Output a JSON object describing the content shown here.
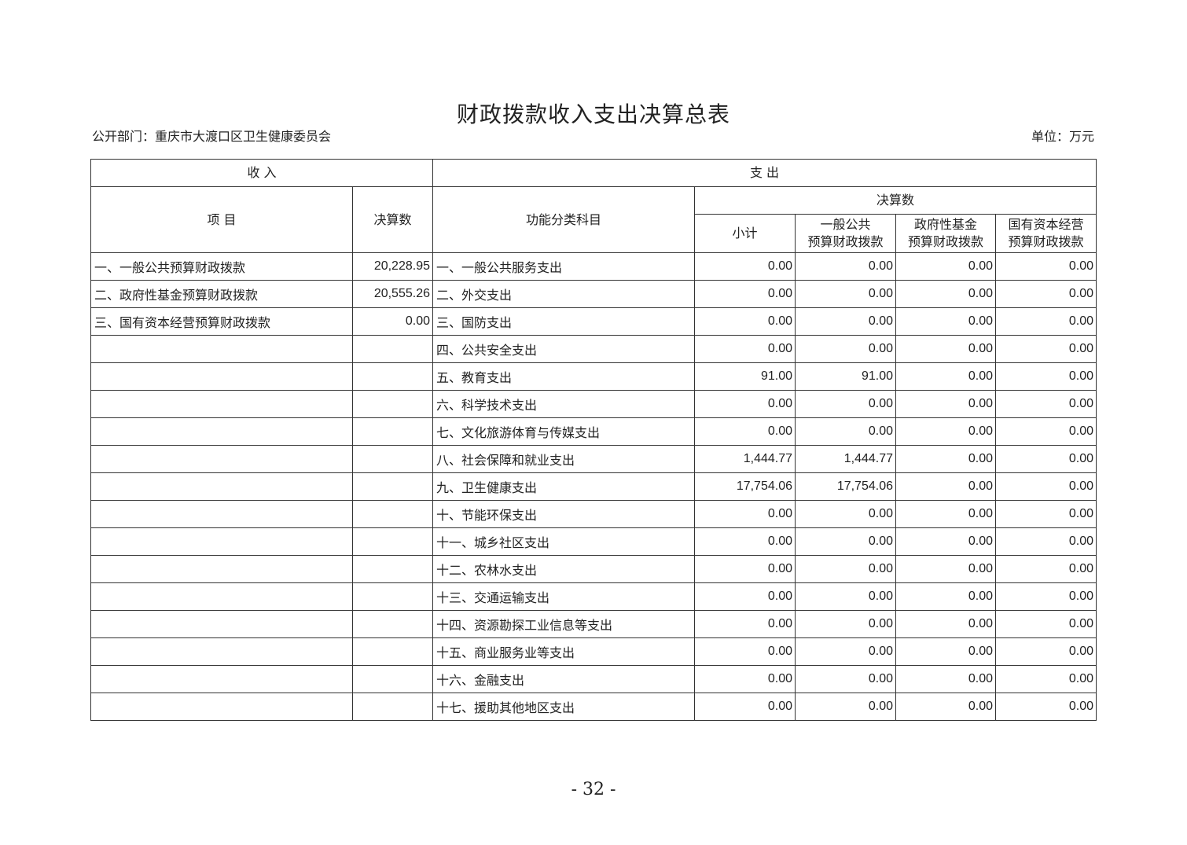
{
  "title": "财政拨款收入支出决算总表",
  "department": "公开部门：重庆市大渡口区卫生健康委员会",
  "unit": "单位：万元",
  "header": {
    "income": "收  入",
    "expense": "支  出",
    "item": "项  目",
    "income_amount": "决算数",
    "function_category": "功能分类科目",
    "final_amount": "决算数",
    "subtotal": "小计",
    "general_public_1": "一般公共",
    "general_public_2": "预算财政拨款",
    "gov_fund_1": "政府性基金",
    "gov_fund_2": "预算财政拨款",
    "state_capital_1": "国有资本经营",
    "state_capital_2": "预算财政拨款"
  },
  "rows": [
    {
      "income_item": "一、一般公共预算财政拨款",
      "income_amount": "20,228.95",
      "category": "一、一般公共服务支出",
      "subtotal": "0.00",
      "general": "0.00",
      "fund": "0.00",
      "capital": "0.00"
    },
    {
      "income_item": "二、政府性基金预算财政拨款",
      "income_amount": "20,555.26",
      "category": "二、外交支出",
      "subtotal": "0.00",
      "general": "0.00",
      "fund": "0.00",
      "capital": "0.00"
    },
    {
      "income_item": "三、国有资本经营预算财政拨款",
      "income_amount": "0.00",
      "category": "三、国防支出",
      "subtotal": "0.00",
      "general": "0.00",
      "fund": "0.00",
      "capital": "0.00"
    },
    {
      "income_item": "",
      "income_amount": "",
      "category": "四、公共安全支出",
      "subtotal": "0.00",
      "general": "0.00",
      "fund": "0.00",
      "capital": "0.00"
    },
    {
      "income_item": "",
      "income_amount": "",
      "category": "五、教育支出",
      "subtotal": "91.00",
      "general": "91.00",
      "fund": "0.00",
      "capital": "0.00"
    },
    {
      "income_item": "",
      "income_amount": "",
      "category": "六、科学技术支出",
      "subtotal": "0.00",
      "general": "0.00",
      "fund": "0.00",
      "capital": "0.00"
    },
    {
      "income_item": "",
      "income_amount": "",
      "category": "七、文化旅游体育与传媒支出",
      "subtotal": "0.00",
      "general": "0.00",
      "fund": "0.00",
      "capital": "0.00"
    },
    {
      "income_item": "",
      "income_amount": "",
      "category": "八、社会保障和就业支出",
      "subtotal": "1,444.77",
      "general": "1,444.77",
      "fund": "0.00",
      "capital": "0.00"
    },
    {
      "income_item": "",
      "income_amount": "",
      "category": "九、卫生健康支出",
      "subtotal": "17,754.06",
      "general": "17,754.06",
      "fund": "0.00",
      "capital": "0.00"
    },
    {
      "income_item": "",
      "income_amount": "",
      "category": "十、节能环保支出",
      "subtotal": "0.00",
      "general": "0.00",
      "fund": "0.00",
      "capital": "0.00"
    },
    {
      "income_item": "",
      "income_amount": "",
      "category": "十一、城乡社区支出",
      "subtotal": "0.00",
      "general": "0.00",
      "fund": "0.00",
      "capital": "0.00"
    },
    {
      "income_item": "",
      "income_amount": "",
      "category": "十二、农林水支出",
      "subtotal": "0.00",
      "general": "0.00",
      "fund": "0.00",
      "capital": "0.00"
    },
    {
      "income_item": "",
      "income_amount": "",
      "category": "十三、交通运输支出",
      "subtotal": "0.00",
      "general": "0.00",
      "fund": "0.00",
      "capital": "0.00"
    },
    {
      "income_item": "",
      "income_amount": "",
      "category": "十四、资源勘探工业信息等支出",
      "subtotal": "0.00",
      "general": "0.00",
      "fund": "0.00",
      "capital": "0.00"
    },
    {
      "income_item": "",
      "income_amount": "",
      "category": "十五、商业服务业等支出",
      "subtotal": "0.00",
      "general": "0.00",
      "fund": "0.00",
      "capital": "0.00"
    },
    {
      "income_item": "",
      "income_amount": "",
      "category": "十六、金融支出",
      "subtotal": "0.00",
      "general": "0.00",
      "fund": "0.00",
      "capital": "0.00"
    },
    {
      "income_item": "",
      "income_amount": "",
      "category": "十七、援助其他地区支出",
      "subtotal": "0.00",
      "general": "0.00",
      "fund": "0.00",
      "capital": "0.00"
    }
  ],
  "page_number": "- 32 -"
}
